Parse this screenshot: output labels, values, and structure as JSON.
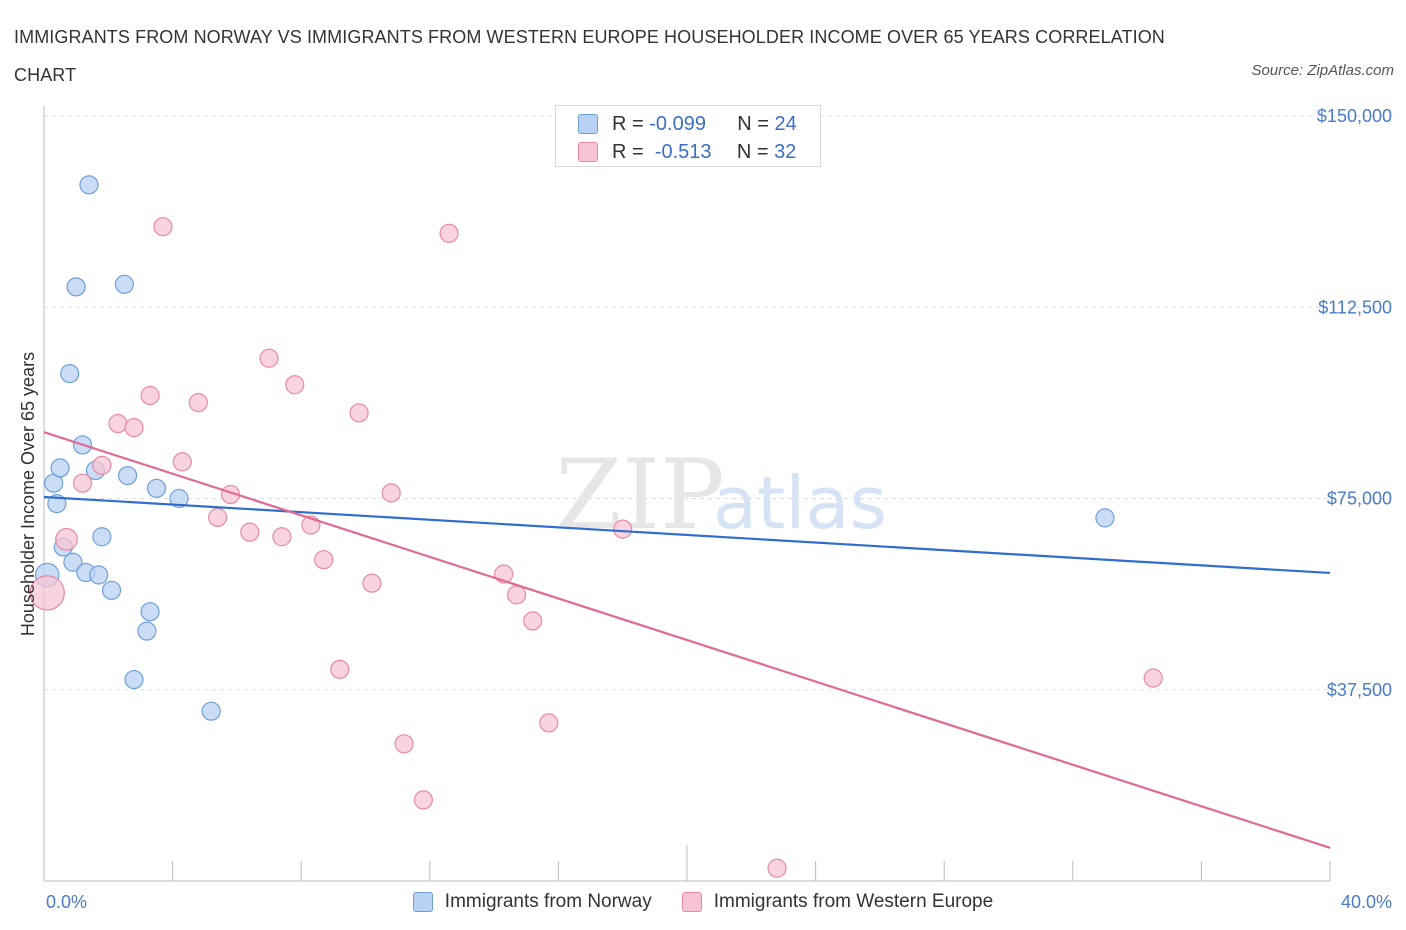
{
  "title": "IMMIGRANTS FROM NORWAY VS IMMIGRANTS FROM WESTERN EUROPE HOUSEHOLDER INCOME OVER 65 YEARS CORRELATION CHART",
  "source": "Source: ZipAtlas.com",
  "watermark": {
    "zip": "ZIP",
    "atlas": "atlas"
  },
  "colors": {
    "norway_fill": "#b9d2f3",
    "norway_stroke": "#6f9fd8",
    "norway_line": "#2f6fcb",
    "we_fill": "#f7c4d3",
    "we_stroke": "#e68aa6",
    "we_line": "#e06a93",
    "axis_label": "#4a7cc8",
    "grid": "#dddddd"
  },
  "legend": {
    "r_label": "R =",
    "n_label": "N =",
    "rows": [
      {
        "r": "-0.099",
        "n": "24"
      },
      {
        "r": "-0.513",
        "n": "32"
      }
    ]
  },
  "chart_data": {
    "type": "scatter",
    "xlabel": "",
    "ylabel": "Householder Income Over 65 years",
    "xlim": [
      0,
      40
    ],
    "ylim": [
      0,
      150000
    ],
    "x_tick_labels": [
      "0.0%",
      "40.0%"
    ],
    "y_ticks": [
      37500,
      75000,
      112500,
      150000
    ],
    "y_tick_labels": [
      "$37,500",
      "$75,000",
      "$112,500",
      "$150,000"
    ],
    "grid": true,
    "legend_position": "top-center",
    "series": [
      {
        "name": "Immigrants from Norway",
        "r": -0.099,
        "n": 24,
        "trend": {
          "x": [
            0,
            40
          ],
          "y": [
            75300,
            60400
          ]
        },
        "points": [
          {
            "x": 0.1,
            "y": 60000,
            "s": 1.3
          },
          {
            "x": 0.3,
            "y": 78000,
            "s": 1
          },
          {
            "x": 0.4,
            "y": 74000,
            "s": 1
          },
          {
            "x": 0.5,
            "y": 81000,
            "s": 1
          },
          {
            "x": 0.6,
            "y": 65500,
            "s": 1
          },
          {
            "x": 0.8,
            "y": 99500,
            "s": 1
          },
          {
            "x": 0.9,
            "y": 62500,
            "s": 1
          },
          {
            "x": 1.0,
            "y": 116500,
            "s": 1
          },
          {
            "x": 1.2,
            "y": 85500,
            "s": 1
          },
          {
            "x": 1.3,
            "y": 60500,
            "s": 1
          },
          {
            "x": 1.4,
            "y": 136500,
            "s": 1
          },
          {
            "x": 1.6,
            "y": 80500,
            "s": 1
          },
          {
            "x": 1.7,
            "y": 60000,
            "s": 1
          },
          {
            "x": 1.8,
            "y": 67500,
            "s": 1
          },
          {
            "x": 2.1,
            "y": 57000,
            "s": 1
          },
          {
            "x": 2.5,
            "y": 117000,
            "s": 1
          },
          {
            "x": 2.6,
            "y": 79500,
            "s": 1
          },
          {
            "x": 2.8,
            "y": 39500,
            "s": 1
          },
          {
            "x": 3.2,
            "y": 49000,
            "s": 1
          },
          {
            "x": 3.3,
            "y": 52800,
            "s": 1
          },
          {
            "x": 3.5,
            "y": 77000,
            "s": 1
          },
          {
            "x": 4.2,
            "y": 75000,
            "s": 1
          },
          {
            "x": 5.2,
            "y": 33300,
            "s": 1
          },
          {
            "x": 33.0,
            "y": 71200,
            "s": 1
          }
        ]
      },
      {
        "name": "Immigrants from Western Europe",
        "r": -0.513,
        "n": 32,
        "trend": {
          "x": [
            0,
            40
          ],
          "y": [
            88000,
            6500
          ]
        },
        "points": [
          {
            "x": 0.1,
            "y": 56500,
            "s": 1.9
          },
          {
            "x": 0.7,
            "y": 67000,
            "s": 1.2
          },
          {
            "x": 1.2,
            "y": 78000,
            "s": 1
          },
          {
            "x": 1.8,
            "y": 81500,
            "s": 1
          },
          {
            "x": 2.3,
            "y": 89700,
            "s": 1
          },
          {
            "x": 2.8,
            "y": 88900,
            "s": 1
          },
          {
            "x": 3.3,
            "y": 95200,
            "s": 1
          },
          {
            "x": 3.7,
            "y": 128300,
            "s": 1
          },
          {
            "x": 4.3,
            "y": 82200,
            "s": 1
          },
          {
            "x": 4.8,
            "y": 93800,
            "s": 1
          },
          {
            "x": 5.4,
            "y": 71300,
            "s": 1
          },
          {
            "x": 5.8,
            "y": 75800,
            "s": 1
          },
          {
            "x": 6.4,
            "y": 68400,
            "s": 1
          },
          {
            "x": 7.0,
            "y": 102500,
            "s": 1
          },
          {
            "x": 7.4,
            "y": 67500,
            "s": 1
          },
          {
            "x": 7.8,
            "y": 97300,
            "s": 1
          },
          {
            "x": 8.3,
            "y": 69800,
            "s": 1
          },
          {
            "x": 8.7,
            "y": 63000,
            "s": 1
          },
          {
            "x": 9.2,
            "y": 41500,
            "s": 1
          },
          {
            "x": 9.8,
            "y": 91800,
            "s": 1
          },
          {
            "x": 10.2,
            "y": 58400,
            "s": 1
          },
          {
            "x": 10.8,
            "y": 76100,
            "s": 1
          },
          {
            "x": 11.2,
            "y": 26900,
            "s": 1
          },
          {
            "x": 11.8,
            "y": 15900,
            "s": 1
          },
          {
            "x": 12.6,
            "y": 127000,
            "s": 1
          },
          {
            "x": 14.3,
            "y": 60200,
            "s": 1
          },
          {
            "x": 14.7,
            "y": 56100,
            "s": 1
          },
          {
            "x": 15.2,
            "y": 51000,
            "s": 1
          },
          {
            "x": 15.7,
            "y": 31000,
            "s": 1
          },
          {
            "x": 18.0,
            "y": 69000,
            "s": 1
          },
          {
            "x": 22.8,
            "y": 2500,
            "s": 1
          },
          {
            "x": 34.5,
            "y": 39800,
            "s": 1
          }
        ]
      }
    ]
  }
}
